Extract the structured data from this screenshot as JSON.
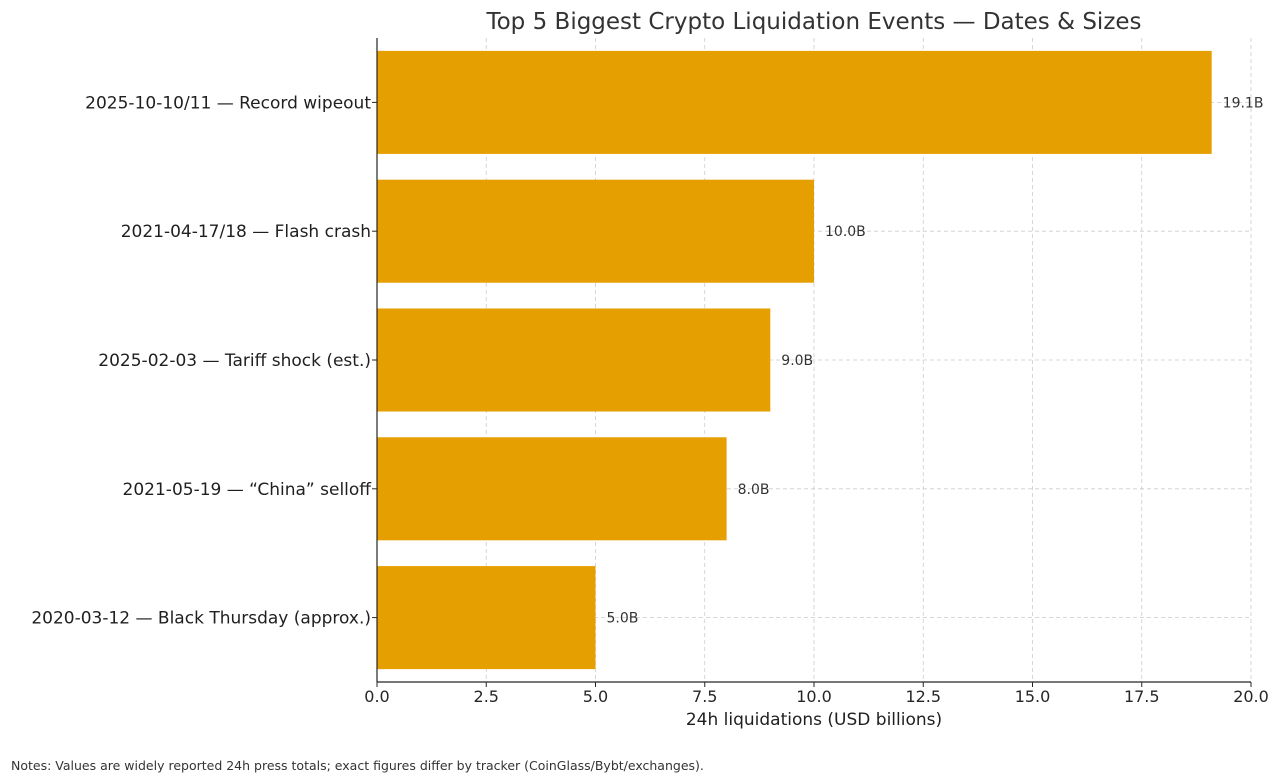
{
  "chart_data": {
    "type": "bar",
    "orientation": "horizontal",
    "title": "Top 5 Biggest Crypto Liquidation Events — Dates & Sizes",
    "xlabel": "24h liquidations (USD billions)",
    "ylabel": "",
    "xlim": [
      0,
      20
    ],
    "xticks": [
      "0.0",
      "2.5",
      "5.0",
      "7.5",
      "10.0",
      "12.5",
      "15.0",
      "17.5",
      "20.0"
    ],
    "grid": true,
    "bar_color": "#E69F00",
    "categories": [
      "2025-10-10/11 — Record wipeout",
      "2021-04-17/18 — Flash crash",
      "2025-02-03 — Tariff shock (est.)",
      "2021-05-19 — “China” selloff",
      "2020-03-12 — Black Thursday (approx.)"
    ],
    "values": [
      19.1,
      10.0,
      9.0,
      8.0,
      5.0
    ],
    "data_labels": [
      "19.1B",
      "10.0B",
      "9.0B",
      "8.0B",
      "5.0B"
    ]
  },
  "notes": "Notes: Values are widely reported 24h press totals; exact figures differ by tracker (CoinGlass/Bybt/exchanges)."
}
